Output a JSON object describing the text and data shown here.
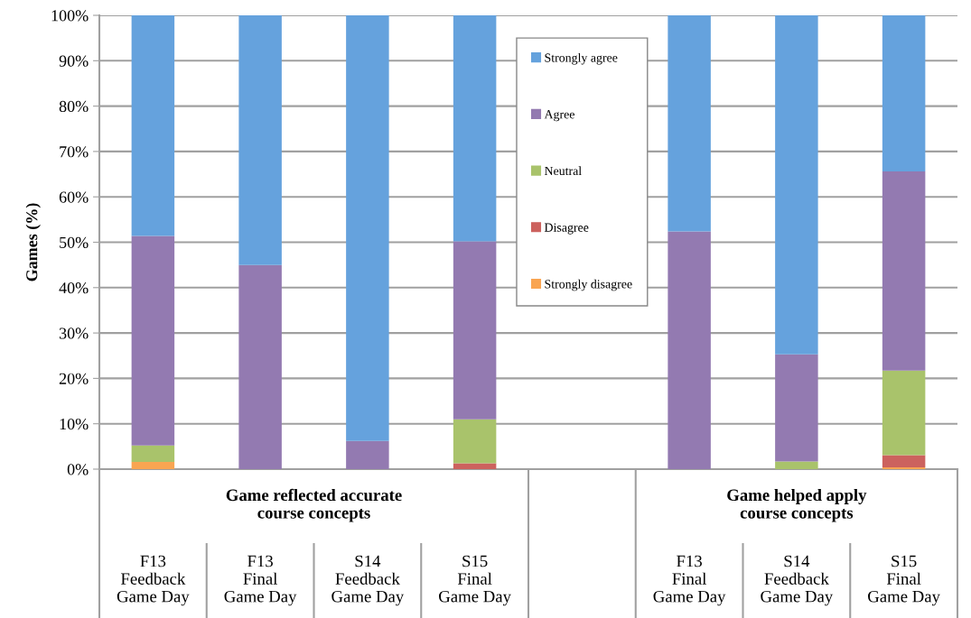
{
  "chart_data": {
    "type": "bar",
    "stacked": true,
    "ylabel": "Games (%)",
    "categories": [
      "F13\nFeedback\nGame Day",
      "F13\nFinal\nGame Day",
      "S14\nFeedback\nGame Day",
      "S15\nFinal\nGame Day",
      null,
      "F13\nFinal\nGame Day",
      "S14\nFeedback\nGame Day",
      "S15\nFinal\nGame Day"
    ],
    "series": [
      {
        "name": "Strongly disagree",
        "color": "#f9a552",
        "values": [
          1.6,
          0,
          0,
          0,
          null,
          0,
          0,
          0.4
        ]
      },
      {
        "name": "Disagree",
        "color": "#cc625e",
        "values": [
          0,
          0,
          0,
          1.3,
          null,
          0,
          0,
          2.7
        ]
      },
      {
        "name": "Neutral",
        "color": "#a9c36b",
        "values": [
          3.6,
          0,
          0,
          9.7,
          null,
          0,
          1.7,
          18.6
        ]
      },
      {
        "name": "Agree",
        "color": "#937ab1",
        "values": [
          46.2,
          45.0,
          6.2,
          39.2,
          null,
          52.4,
          23.6,
          43.9
        ]
      },
      {
        "name": "Strongly agree",
        "color": "#65a2dd",
        "values": [
          48.6,
          55.0,
          93.8,
          49.8,
          null,
          47.6,
          74.7,
          34.4
        ]
      }
    ],
    "ylim": [
      0,
      100
    ],
    "yticks": [
      {
        "value": 0,
        "label": "0%"
      },
      {
        "value": 10,
        "label": "10%"
      },
      {
        "value": 20,
        "label": "20%"
      },
      {
        "value": 30,
        "label": "30%"
      },
      {
        "value": 40,
        "label": "40%"
      },
      {
        "value": 50,
        "label": "50%"
      },
      {
        "value": 60,
        "label": "60%"
      },
      {
        "value": 70,
        "label": "70%"
      },
      {
        "value": 80,
        "label": "80%"
      },
      {
        "value": 90,
        "label": "90%"
      },
      {
        "value": 100,
        "label": "100%"
      }
    ],
    "grid": "y",
    "legend": "top",
    "annotations": [
      "Game reflected accurate\ncourse concepts",
      "Game helped apply\ncourse concepts"
    ]
  }
}
